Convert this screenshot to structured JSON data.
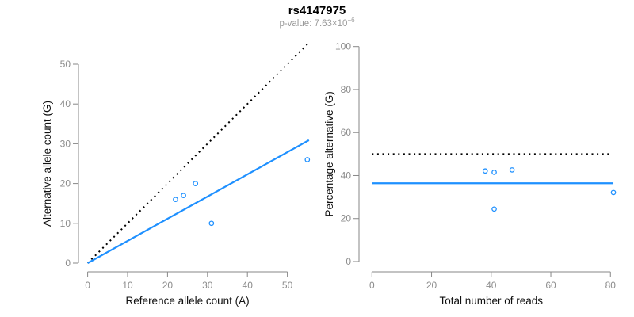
{
  "header": {
    "title": "rs4147975",
    "pvalue_prefix": "p-value: 7.63×10",
    "pvalue_exponent": "−6"
  },
  "colors": {
    "accent_blue": "#1E90FF",
    "axis_gray": "#878787",
    "tick_label_gray": "#8c8c8c",
    "axis_title_black": "#111111",
    "subtitle_gray": "#9a9a9a",
    "line_black": "#000000"
  },
  "chart_data": [
    {
      "type": "scatter",
      "name": "allele-counts-plot",
      "xlabel": "Reference allele count (A)",
      "ylabel": "Alternative allele count (G)",
      "xlim": [
        0,
        55.5
      ],
      "ylim": [
        0,
        55.5
      ],
      "xticks": [
        0,
        10,
        20,
        30,
        40,
        50
      ],
      "yticks": [
        0,
        10,
        20,
        30,
        40,
        50
      ],
      "grid": false,
      "points": [
        [
          22,
          16
        ],
        [
          24,
          17
        ],
        [
          27,
          20
        ],
        [
          31,
          10
        ],
        [
          55,
          26
        ]
      ],
      "lines": [
        {
          "name": "identity-line",
          "style": "dotted",
          "color": "#000000",
          "x1": 0,
          "y1": 0,
          "x2": 55,
          "y2": 55
        },
        {
          "name": "fit-line",
          "style": "solid",
          "color": "#1E90FF",
          "x1": 0,
          "y1": 0,
          "x2": 55.4,
          "y2": 30.9
        }
      ]
    },
    {
      "type": "scatter",
      "name": "percentage-alternative-plot",
      "xlabel": "Total number of reads",
      "ylabel": "Percentage alternative (G)",
      "xlim": [
        0,
        81
      ],
      "ylim": [
        0,
        100
      ],
      "xticks": [
        0,
        20,
        40,
        60,
        80
      ],
      "yticks": [
        0,
        20,
        40,
        60,
        80,
        100
      ],
      "grid": false,
      "points": [
        [
          38,
          42.1
        ],
        [
          41,
          41.5
        ],
        [
          47,
          42.6
        ],
        [
          41,
          24.4
        ],
        [
          81,
          32.1
        ]
      ],
      "lines": [
        {
          "name": "expected-50pct-line",
          "style": "dotted",
          "color": "#000000",
          "x1": 0,
          "y1": 50,
          "x2": 80.3,
          "y2": 50
        },
        {
          "name": "mean-alt-pct-line",
          "style": "solid",
          "color": "#1E90FF",
          "x1": 0,
          "y1": 36.4,
          "x2": 81,
          "y2": 36.4
        }
      ]
    }
  ]
}
